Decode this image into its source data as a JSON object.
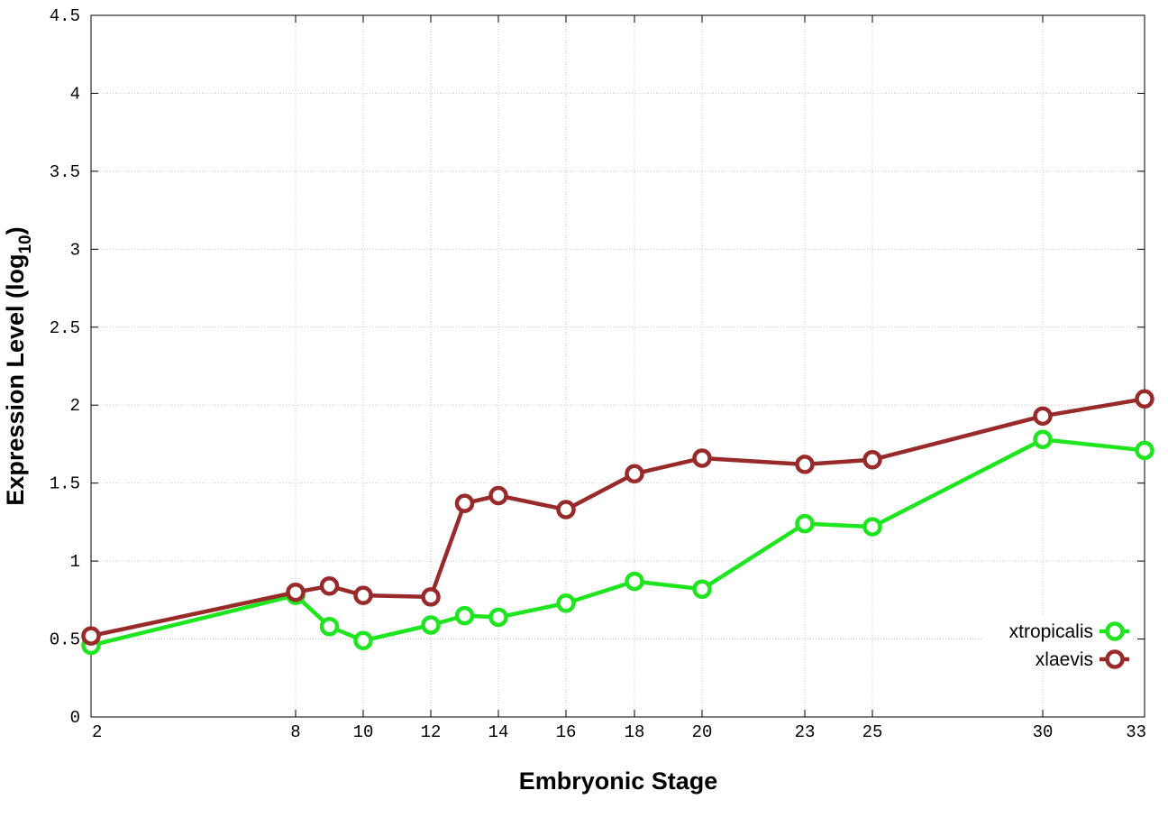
{
  "chart_data": {
    "type": "line",
    "xlabel": "Embryonic Stage",
    "ylabel_main": "Expression Level (log",
    "ylabel_sub": "10",
    "ylabel_close": ")",
    "x_ticks": [
      "2",
      "8",
      "10",
      "12",
      "14",
      "16",
      "18",
      "20",
      "23",
      "25",
      "30",
      "33"
    ],
    "y_ticks": [
      "0",
      "0.5",
      "1",
      "1.5",
      "2",
      "2.5",
      "3",
      "3.5",
      "4",
      "4.5"
    ],
    "ylim": [
      0,
      4.5
    ],
    "x_stages": [
      2,
      8,
      9,
      10,
      12,
      13,
      14,
      16,
      18,
      20,
      23,
      25,
      30,
      33
    ],
    "grid": true,
    "legend_position": "lower-right",
    "series": [
      {
        "name": "xtropicalis",
        "color": "#1ee61e",
        "values": [
          0.46,
          0.78,
          0.58,
          0.49,
          0.59,
          0.65,
          0.64,
          0.73,
          0.87,
          0.82,
          1.24,
          1.22,
          1.78,
          1.71
        ]
      },
      {
        "name": "xlaevis",
        "color": "#992a2a",
        "values": [
          0.52,
          0.8,
          0.84,
          0.78,
          0.77,
          1.37,
          1.42,
          1.33,
          1.56,
          1.66,
          1.62,
          1.65,
          1.93,
          2.04
        ]
      }
    ]
  }
}
